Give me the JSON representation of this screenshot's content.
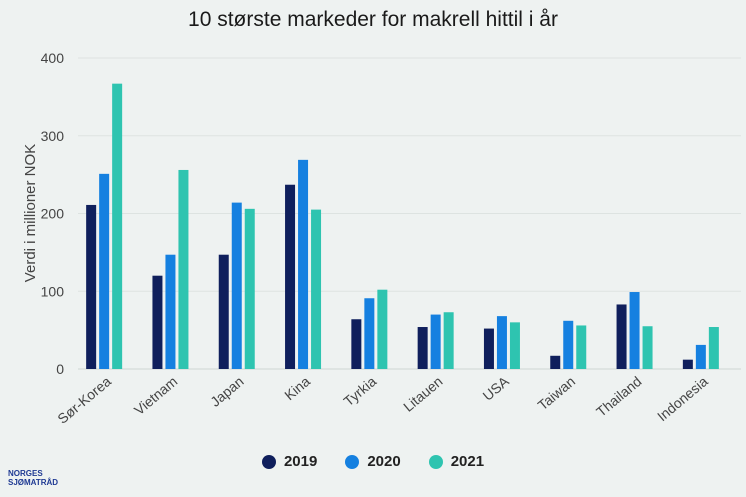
{
  "chart_data": {
    "type": "bar",
    "title": "10 største markeder for makrell hittil i år",
    "ylabel": "Verdi i millioner NOK",
    "xlabel": "",
    "ylim": [
      0,
      400
    ],
    "yticks": [
      0,
      100,
      200,
      300,
      400
    ],
    "grid": true,
    "legend_position": "bottom",
    "categories": [
      "Sør-Korea",
      "Vietnam",
      "Japan",
      "Kina",
      "Tyrkia",
      "Litauen",
      "USA",
      "Taiwan",
      "Thailand",
      "Indonesia"
    ],
    "series": [
      {
        "name": "2019",
        "color": "#0f1f5c",
        "values": [
          211,
          120,
          147,
          237,
          64,
          54,
          52,
          17,
          83,
          12
        ]
      },
      {
        "name": "2020",
        "color": "#1580e0",
        "values": [
          251,
          147,
          214,
          269,
          91,
          70,
          68,
          62,
          99,
          31
        ]
      },
      {
        "name": "2021",
        "color": "#2ec4b0",
        "values": [
          367,
          256,
          206,
          205,
          102,
          73,
          60,
          56,
          55,
          54
        ]
      }
    ]
  },
  "logo": {
    "line1": "NORGES",
    "line2": "SJØMATRÅD"
  }
}
